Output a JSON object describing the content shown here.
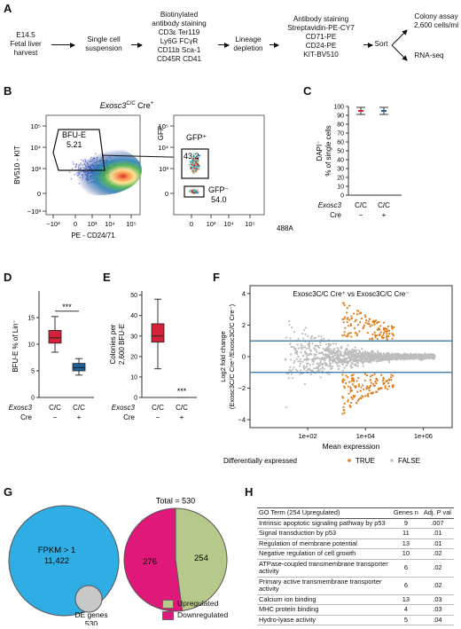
{
  "panels": {
    "A": "A",
    "B": "B",
    "C": "C",
    "D": "D",
    "E": "E",
    "F": "F",
    "G": "G",
    "H": "H"
  },
  "flow": {
    "steps": [
      "E14.5\nFetal liver\nharvest",
      "Single cell\nsuspension",
      "Biotinylated\nantibody staining\nCD3ε  Ter119\nLy6G  FCγR\nCD11b  Sca-1\nCD45R  CD41",
      "Lineage\ndepletion",
      "Antibody staining\nStreptavidin-PE-CY7\nCD71-PE\nCD24-PE\nKIT-BV510",
      "Sort",
      "Colony assay\n2,600 cells/ml",
      "RNA-seq"
    ]
  },
  "panelB": {
    "title": "Exosc3",
    "title_sup": "C/C",
    "title_suffix": " Cre",
    "title_sup2": "+",
    "gate1_name": "BFU-E",
    "gate1_value": "5.21",
    "xlabel1": "PE - CD24/71",
    "ylabel1": "BV510 - KIT",
    "xticks1": [
      "−10³",
      "0",
      "10³",
      "10⁴",
      "10⁵"
    ],
    "yticks1": [
      "10⁵",
      "10⁴",
      "10³",
      "0",
      "−10³"
    ],
    "gfp_plus_label": "GFP⁺",
    "gfp_plus_value": "43.2",
    "gfp_minus_label": "GFP⁻",
    "gfp_minus_value": "54.0",
    "xlabel2": "488A",
    "ylabel2": "GFP",
    "xticks2": [
      "0",
      "10³",
      "10⁴",
      "10⁵"
    ],
    "yticks2": [
      "10⁵",
      "10⁴",
      "10³",
      "0"
    ]
  },
  "panelC": {
    "ylabel": "DAPI⁻\n% of single cells",
    "yticks": [
      "0",
      "10",
      "20",
      "30",
      "40",
      "50",
      "60",
      "70",
      "80",
      "90",
      "100"
    ],
    "genotype_label": "Exosc3",
    "genotypes": [
      "C/C",
      "C/C"
    ],
    "cre_label": "Cre",
    "cre": [
      "−",
      "+"
    ],
    "chart_data": {
      "type": "box",
      "categories": [
        "Cre−",
        "Cre+"
      ],
      "median": [
        95,
        95
      ],
      "ylim": [
        0,
        100
      ]
    }
  },
  "panelD": {
    "ylabel": "BFU-E % of Lin⁻",
    "yticks": [
      "0",
      "5",
      "10",
      "15"
    ],
    "sig": "***",
    "genotype_label": "Exosc3",
    "genotypes": [
      "C/C",
      "C/C"
    ],
    "cre_label": "Cre",
    "cre": [
      "−",
      "+"
    ],
    "colors": [
      "#d6213a",
      "#1f5f96"
    ],
    "chart_data": {
      "type": "box",
      "categories": [
        "Cre−",
        "Cre+"
      ],
      "min": [
        8.5,
        4.2
      ],
      "q1": [
        10.2,
        5.0
      ],
      "median": [
        11.2,
        5.6
      ],
      "q3": [
        12.6,
        6.4
      ],
      "max": [
        15.2,
        7.3
      ],
      "ylim": [
        0,
        20
      ]
    }
  },
  "panelE": {
    "ylabel": "Colonies per\n2,600 BFU-E",
    "yticks": [
      "0",
      "10",
      "20",
      "30",
      "40",
      "50"
    ],
    "sig": "***",
    "genotype_label": "Exosc3",
    "genotypes": [
      "C/C",
      "C/C"
    ],
    "cre_label": "Cre",
    "cre": [
      "−",
      "+"
    ],
    "chart_data": {
      "type": "box",
      "categories": [
        "Cre−",
        "Cre+"
      ],
      "min": [
        14,
        0
      ],
      "q1": [
        27,
        0
      ],
      "median": [
        30,
        0
      ],
      "q3": [
        36,
        0
      ],
      "max": [
        48,
        0
      ],
      "ylim": [
        0,
        52
      ]
    }
  },
  "panelF": {
    "title": "Exosc3C/C Cre⁺ vs Exosc3C/C Cre⁻",
    "ylabel": "Log2 fold change\n(Exosc3C/C Cre⁺/Exosc3C/C Cre⁻)",
    "xlabel": "Mean expression",
    "xticks": [
      "1e+02",
      "1e+04",
      "1e+06"
    ],
    "yticks": [
      "4",
      "2",
      "0",
      "−2",
      "−4"
    ],
    "legend_title": "Differentially expressed",
    "legend_true": "TRUE",
    "legend_false": "FALSE",
    "color_true": "#e07b1a",
    "color_false": "#bdbdbd",
    "hline_color": "#2b6ea3",
    "chart_data": {
      "type": "scatter",
      "xscale": "log",
      "xlim": [
        1,
        10000000
      ],
      "ylim": [
        -4.5,
        4.5
      ],
      "hlines": [
        1,
        -1
      ]
    }
  },
  "panelG": {
    "fpkm_label": "FPKM > 1",
    "fpkm_value": "11,422",
    "de_label": "DE genes",
    "de_value": "530",
    "total_label": "Total = 530",
    "up_value": "254",
    "down_value": "276",
    "legend_up": "Upregulated",
    "legend_down": "Downregulated",
    "colors": {
      "fpkm": "#2eaee4",
      "de": "#c8c8c8",
      "up": "#b6c98a",
      "down": "#e0187a"
    },
    "chart_data": {
      "type": "pie",
      "categories": [
        "Upregulated",
        "Downregulated"
      ],
      "values": [
        254,
        276
      ]
    }
  },
  "panelH": {
    "headers": [
      "GO Term (254 Upregulated)",
      "Genes n",
      "Adj. P val"
    ],
    "rows": [
      [
        "Intrinsic apoptotic signaling pathway by p53",
        "9",
        ".007"
      ],
      [
        "Signal transduction by p53",
        "11",
        ".01"
      ],
      [
        "Regulation of membrane potential",
        "13",
        ".01"
      ],
      [
        "Negative regulation of cell growth",
        "10",
        ".02"
      ],
      [
        "ATPase-coupled transmembrane transporter activity",
        "6",
        ".02"
      ],
      [
        "Primary active transmembrane transporter activity",
        "6",
        ".02"
      ],
      [
        "Calcium ion binding",
        "13",
        ".03"
      ],
      [
        "MHC protein binding",
        "4",
        ".03"
      ],
      [
        "Hydro-lyase activity",
        "5",
        ".04"
      ]
    ]
  }
}
